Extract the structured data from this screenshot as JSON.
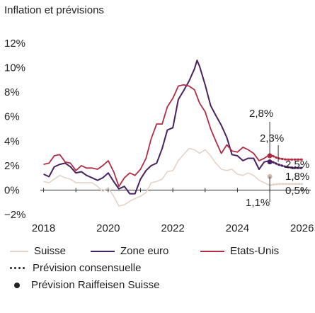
{
  "chart_data": {
    "type": "line",
    "title": "Inflation et prévisions",
    "xlabel": "",
    "ylabel": "",
    "xlim": [
      2017.9,
      2026.4
    ],
    "ylim": [
      -2,
      12
    ],
    "x_ticks": [
      2018,
      2020,
      2022,
      2024,
      2026
    ],
    "y_ticks": [
      -2,
      0,
      2,
      4,
      6,
      8,
      10,
      12
    ],
    "y_tick_labels": [
      "−2%",
      "0%",
      "2%",
      "4%",
      "6%",
      "8%",
      "10%",
      "12%"
    ],
    "grid": false,
    "legend": "bottom",
    "series": [
      {
        "name": "Suisse",
        "color": "#e3d3c9",
        "x": [
          2018.0,
          2018.17,
          2018.33,
          2018.5,
          2018.67,
          2018.83,
          2019.0,
          2019.17,
          2019.33,
          2019.5,
          2019.67,
          2019.83,
          2020.0,
          2020.17,
          2020.33,
          2020.5,
          2020.67,
          2020.83,
          2021.0,
          2021.17,
          2021.33,
          2021.5,
          2021.67,
          2021.83,
          2022.0,
          2022.17,
          2022.33,
          2022.5,
          2022.67,
          2022.83,
          2023.0,
          2023.17,
          2023.33,
          2023.5,
          2023.67,
          2023.83,
          2024.0,
          2024.17,
          2024.33,
          2024.5,
          2024.67,
          2024.83,
          2025.0
        ],
        "values": [
          0.7,
          0.6,
          0.9,
          1.2,
          1.0,
          0.9,
          0.6,
          0.6,
          0.6,
          0.6,
          0.3,
          -0.1,
          0.2,
          -0.5,
          -1.3,
          -1.2,
          -0.9,
          -0.7,
          -0.5,
          -0.2,
          0.6,
          0.7,
          0.9,
          1.5,
          1.6,
          2.4,
          2.9,
          3.4,
          3.3,
          3.0,
          3.3,
          2.8,
          2.2,
          1.7,
          1.6,
          1.7,
          1.3,
          1.2,
          1.4,
          1.2,
          0.8,
          0.6,
          0.4
        ]
      },
      {
        "name": "Zone euro",
        "color": "#4a2160",
        "x": [
          2018.0,
          2018.17,
          2018.33,
          2018.5,
          2018.67,
          2018.83,
          2019.0,
          2019.17,
          2019.33,
          2019.5,
          2019.67,
          2019.83,
          2020.0,
          2020.17,
          2020.33,
          2020.5,
          2020.67,
          2020.83,
          2021.0,
          2021.17,
          2021.33,
          2021.5,
          2021.67,
          2021.83,
          2022.0,
          2022.17,
          2022.33,
          2022.5,
          2022.67,
          2022.75,
          2022.83,
          2023.0,
          2023.17,
          2023.33,
          2023.5,
          2023.67,
          2023.83,
          2024.0,
          2024.17,
          2024.33,
          2024.5,
          2024.67,
          2024.83,
          2025.0
        ],
        "values": [
          1.3,
          1.1,
          1.9,
          2.1,
          2.2,
          1.9,
          1.4,
          1.5,
          1.2,
          1.0,
          0.8,
          1.0,
          1.4,
          0.7,
          0.1,
          0.3,
          -0.3,
          -0.3,
          0.9,
          1.6,
          2.0,
          2.2,
          3.4,
          4.9,
          5.1,
          7.4,
          8.1,
          8.9,
          9.9,
          10.6,
          10.1,
          8.6,
          6.9,
          6.1,
          5.3,
          4.3,
          2.9,
          2.8,
          2.4,
          2.6,
          2.6,
          1.7,
          2.3,
          2.4
        ]
      },
      {
        "name": "Etats-Unis",
        "color": "#b32c44",
        "x": [
          2018.0,
          2018.17,
          2018.33,
          2018.5,
          2018.67,
          2018.83,
          2019.0,
          2019.17,
          2019.33,
          2019.5,
          2019.67,
          2019.83,
          2020.0,
          2020.17,
          2020.33,
          2020.5,
          2020.67,
          2020.83,
          2021.0,
          2021.17,
          2021.33,
          2021.5,
          2021.67,
          2021.83,
          2022.0,
          2022.17,
          2022.33,
          2022.5,
          2022.67,
          2022.83,
          2023.0,
          2023.17,
          2023.33,
          2023.5,
          2023.67,
          2023.83,
          2024.0,
          2024.17,
          2024.33,
          2024.5,
          2024.67,
          2024.83,
          2025.0
        ],
        "values": [
          2.1,
          2.2,
          2.8,
          2.9,
          2.3,
          2.2,
          1.6,
          2.0,
          1.8,
          1.8,
          1.7,
          2.0,
          2.4,
          1.5,
          0.3,
          1.0,
          1.4,
          1.2,
          1.7,
          2.6,
          4.2,
          5.4,
          5.4,
          6.8,
          7.5,
          8.5,
          8.6,
          8.5,
          8.2,
          7.1,
          6.4,
          5.0,
          4.0,
          3.0,
          3.7,
          3.2,
          3.1,
          3.5,
          3.3,
          3.0,
          2.4,
          2.6,
          2.9
        ]
      },
      {
        "name": "Prévision consensuelle",
        "color": "#222222",
        "forecasts": [
          {
            "x": [
              2025.0,
              2025.25,
              2025.5,
              2025.75,
              2026.0
            ],
            "values": [
              2.9,
              2.6,
              2.5,
              2.5,
              2.5
            ]
          },
          {
            "x": [
              2025.0,
              2025.25,
              2025.5,
              2025.75,
              2026.0
            ],
            "values": [
              2.4,
              2.1,
              1.9,
              1.8,
              1.8
            ]
          },
          {
            "x": [
              2025.0,
              2025.25,
              2025.5,
              2025.75,
              2026.0
            ],
            "values": [
              0.4,
              0.5,
              0.5,
              0.5,
              0.5
            ]
          }
        ]
      },
      {
        "name": "Prévision Raiffeisen Suisse",
        "color": "#222222",
        "points": [
          {
            "x": 2025.0,
            "value": 2.8
          },
          {
            "x": 2025.0,
            "value": 2.3
          },
          {
            "x": 2025.0,
            "value": 1.1
          }
        ]
      }
    ],
    "annotations": [
      "2,8%",
      "2,3%",
      "1,1%",
      "2,5%",
      "1,8%",
      "0,5%"
    ]
  },
  "legend": {
    "suisse": "Suisse",
    "zone_euro": "Zone euro",
    "etats_unis": "Etats-Unis",
    "consensus": "Prévision consensuelle",
    "raiffeisen": "Prévision Raiffeisen Suisse"
  }
}
